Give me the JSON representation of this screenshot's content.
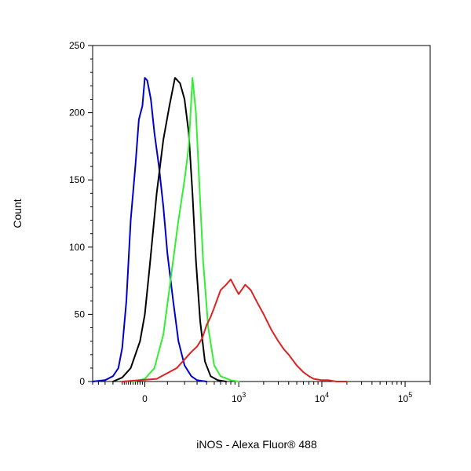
{
  "chart_data": {
    "type": "line",
    "title": "",
    "xlabel": "iNOS - Alexa Fluor® 488",
    "ylabel": "Count",
    "x_scale": "biexponential",
    "xlim": [
      -300,
      200000
    ],
    "ylim": [
      0,
      250
    ],
    "grid": false,
    "legend": "none",
    "y_ticks": [
      0,
      50,
      100,
      150,
      200,
      250
    ],
    "x_ticks": [
      {
        "value": 0,
        "label": "0",
        "exp": ""
      },
      {
        "value": 1000,
        "label": "10",
        "exp": "3"
      },
      {
        "value": 10000,
        "label": "10",
        "exp": "4"
      },
      {
        "value": 100000,
        "label": "10",
        "exp": "5"
      }
    ],
    "series": [
      {
        "color": "#0000cc",
        "x": [
          -300,
          -200,
          -150,
          -120,
          -100,
          -80,
          -60,
          -40,
          -25,
          -10,
          0,
          10,
          25,
          40,
          60,
          80,
          100,
          130,
          160,
          200,
          250,
          300,
          400
        ],
        "y": [
          0,
          1,
          4,
          10,
          25,
          60,
          120,
          160,
          195,
          205,
          226,
          224,
          210,
          185,
          160,
          130,
          95,
          60,
          30,
          12,
          4,
          1,
          0
        ]
      },
      {
        "color": "#000000",
        "x": [
          -150,
          -100,
          -60,
          -20,
          0,
          20,
          50,
          80,
          110,
          140,
          170,
          200,
          230,
          260,
          290,
          330,
          380,
          450,
          550,
          700
        ],
        "y": [
          0,
          3,
          10,
          30,
          50,
          85,
          140,
          180,
          205,
          226,
          222,
          210,
          185,
          140,
          90,
          45,
          15,
          4,
          1,
          0
        ]
      },
      {
        "color": "#33ee33",
        "x": [
          -50,
          0,
          40,
          80,
          120,
          160,
          200,
          230,
          260,
          290,
          320,
          360,
          420,
          500,
          600,
          800,
          1000
        ],
        "y": [
          0,
          2,
          10,
          35,
          80,
          120,
          150,
          175,
          226,
          200,
          150,
          90,
          40,
          12,
          4,
          1,
          0
        ]
      },
      {
        "color": "#dd2222",
        "x": [
          -100,
          50,
          150,
          250,
          300,
          350,
          400,
          450,
          500,
          600,
          700,
          800,
          900,
          1000,
          1200,
          1400,
          1700,
          2000,
          2500,
          3000,
          3500,
          4000,
          5000,
          6000,
          7000,
          8000,
          10000,
          12000,
          15000,
          20000
        ],
        "y": [
          0,
          2,
          10,
          22,
          26,
          32,
          42,
          48,
          55,
          68,
          72,
          76,
          70,
          65,
          72,
          68,
          58,
          50,
          38,
          30,
          24,
          20,
          12,
          7,
          4,
          2,
          1,
          1,
          0,
          0
        ]
      }
    ]
  }
}
